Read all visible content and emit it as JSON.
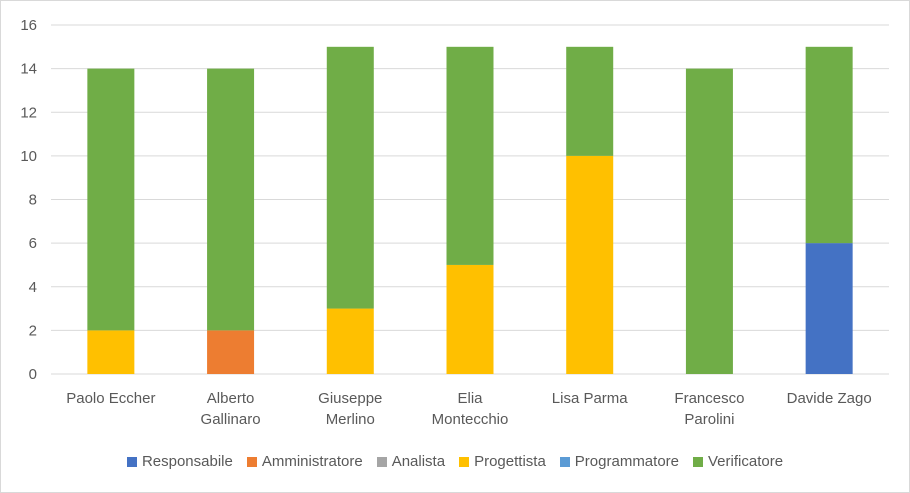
{
  "chart_data": {
    "type": "bar",
    "stacked": true,
    "categories": [
      [
        "Paolo Eccher"
      ],
      [
        "Alberto",
        "Gallinaro"
      ],
      [
        "Giuseppe",
        "Merlino"
      ],
      [
        "Elia",
        "Montecchio"
      ],
      [
        "Lisa Parma"
      ],
      [
        "Francesco",
        "Parolini"
      ],
      [
        "Davide Zago"
      ]
    ],
    "series": [
      {
        "name": "Responsabile",
        "color": "#4472c4",
        "values": [
          0,
          0,
          0,
          0,
          0,
          0,
          6
        ]
      },
      {
        "name": "Amministratore",
        "color": "#ed7d31",
        "values": [
          0,
          2,
          0,
          0,
          0,
          0,
          0
        ]
      },
      {
        "name": "Analista",
        "color": "#a5a5a5",
        "values": [
          0,
          0,
          0,
          0,
          0,
          0,
          0
        ]
      },
      {
        "name": "Progettista",
        "color": "#ffc000",
        "values": [
          2,
          0,
          3,
          5,
          10,
          0,
          0
        ]
      },
      {
        "name": "Programmatore",
        "color": "#5b9bd5",
        "values": [
          0,
          0,
          0,
          0,
          0,
          0,
          0
        ]
      },
      {
        "name": "Verificatore",
        "color": "#70ad47",
        "values": [
          12,
          12,
          12,
          10,
          5,
          14,
          9
        ]
      }
    ],
    "ylim": [
      0,
      16
    ],
    "yticks": [
      0,
      2,
      4,
      6,
      8,
      10,
      12,
      14,
      16
    ],
    "grid": true,
    "legend_position": "bottom"
  }
}
